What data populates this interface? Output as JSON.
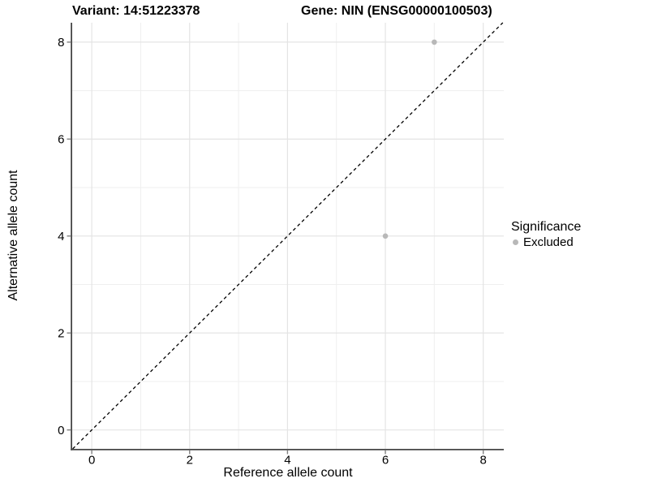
{
  "chart_data": {
    "type": "scatter",
    "titles": {
      "variant": "Variant: 14:51223378",
      "gene": "Gene: NIN (ENSG00000100503)"
    },
    "xlabel": "Reference allele count",
    "ylabel": "Alternative allele count",
    "xlim": [
      -0.4,
      8.42
    ],
    "ylim": [
      -0.39,
      8.4
    ],
    "x_ticks": [
      0,
      2,
      4,
      6,
      8
    ],
    "y_ticks": [
      0,
      2,
      4,
      6,
      8
    ],
    "x_minor_gridlines": [
      1,
      3,
      5,
      7
    ],
    "y_minor_gridlines": [
      1,
      3,
      5,
      7
    ],
    "grid": "on",
    "reference_line": {
      "type": "identity",
      "slope": 1,
      "intercept": 0,
      "style": "dashed",
      "color": "#000000"
    },
    "series": [
      {
        "name": "Excluded",
        "marker_color": "#b8b8b8",
        "points": [
          [
            6,
            4
          ],
          [
            7,
            8
          ]
        ]
      }
    ],
    "legend": {
      "position": "right",
      "title": "Significance",
      "items": [
        {
          "label": "Excluded",
          "color": "#b8b8b8"
        }
      ]
    },
    "colors": {
      "background": "#ffffff",
      "grid_major": "#e4e4e4",
      "grid_minor": "#efefef",
      "axis_line": "#474747",
      "tick_mark": "#808080",
      "point": "#b8b8b8",
      "text": "#000000"
    }
  }
}
